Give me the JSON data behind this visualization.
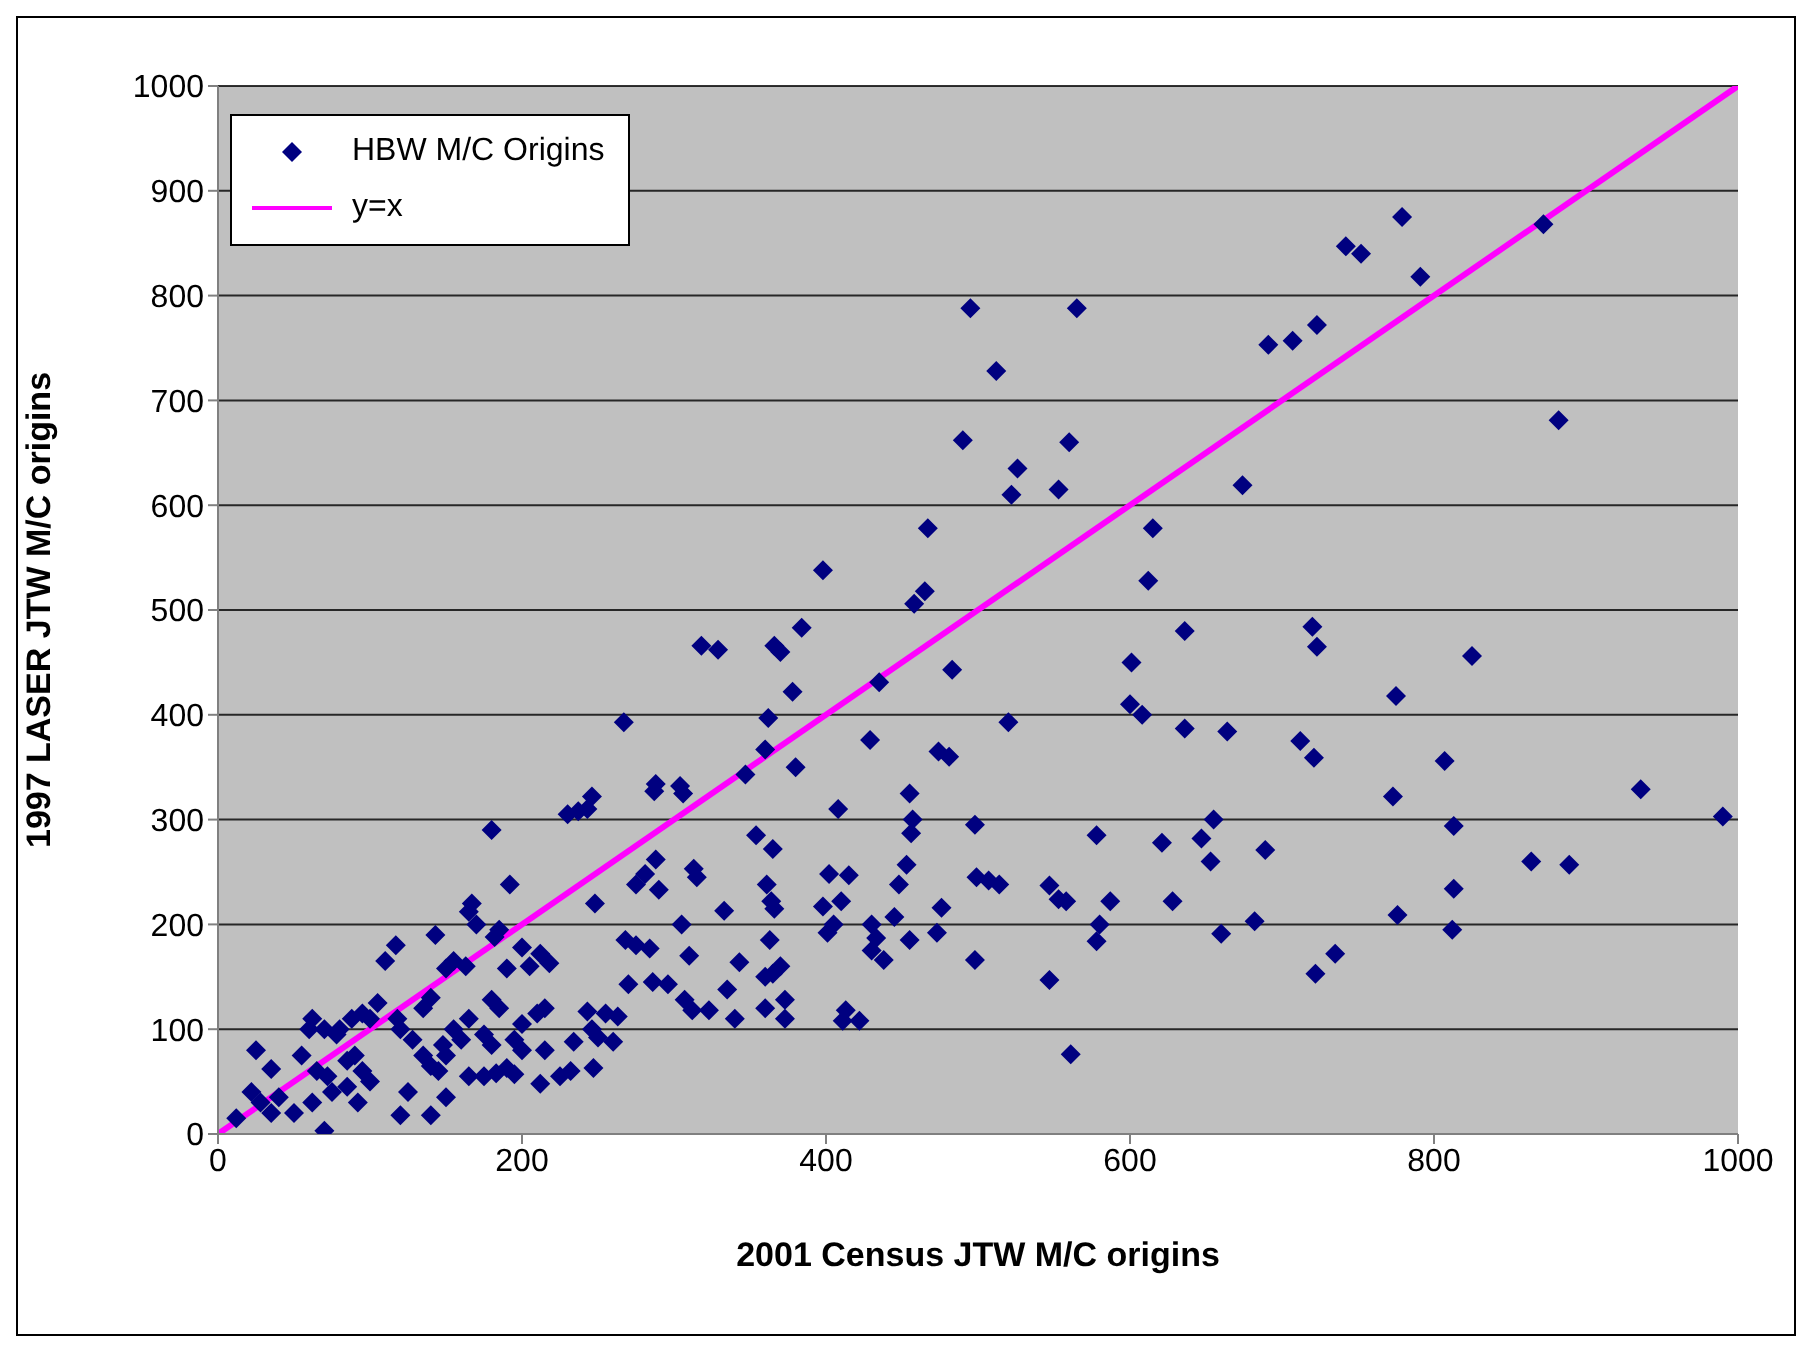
{
  "chart_data": {
    "type": "scatter",
    "xlabel": "2001 Census JTW M/C origins",
    "ylabel": "1997 LASER JTW M/C origins",
    "xlim": [
      0,
      1000
    ],
    "xticks": [
      0,
      200,
      400,
      600,
      800,
      1000
    ],
    "ylim": [
      0,
      1000
    ],
    "yticks": [
      0,
      100,
      200,
      300,
      400,
      500,
      600,
      700,
      800,
      900,
      1000
    ],
    "grid": "y",
    "legend": "top left",
    "marker": "diamond",
    "series": [
      {
        "name": "HBW M/C Origins",
        "color": "#000080",
        "x": [
          495,
          565,
          512,
          490,
          560,
          526,
          522,
          553,
          467,
          465,
          458,
          483,
          398,
          691,
          707,
          723,
          742,
          752,
          779,
          791,
          872,
          882,
          674,
          615,
          612,
          636,
          720,
          723,
          825,
          601,
          775,
          600,
          608,
          636,
          664,
          520,
          712,
          721,
          807,
          936,
          990,
          773,
          813,
          655,
          647,
          621,
          689,
          653,
          864,
          889,
          813,
          587,
          628,
          776,
          682,
          812,
          660,
          722,
          735,
          578,
          547,
          553,
          558,
          580,
          578,
          547,
          561,
          498,
          499,
          507,
          514,
          498,
          476,
          473,
          474,
          481,
          455,
          457,
          456,
          453,
          448,
          445,
          455,
          435,
          429,
          430,
          433,
          430,
          438,
          408,
          402,
          415,
          410,
          398,
          401,
          405,
          411,
          413,
          422,
          362,
          360,
          366,
          370,
          384,
          378,
          380,
          347,
          318,
          329,
          354,
          365,
          361,
          364,
          366,
          363,
          370,
          365,
          360,
          360,
          373,
          373,
          343,
          333,
          335,
          340,
          323,
          312,
          307,
          305,
          310,
          313,
          315,
          304,
          306,
          288,
          287,
          267,
          288,
          281,
          275,
          290,
          275,
          284,
          268,
          296,
          286,
          270,
          260,
          247,
          263,
          255,
          243,
          246,
          250,
          230,
          237,
          243,
          246,
          248,
          234,
          225,
          232,
          212,
          215,
          200,
          205,
          212,
          218,
          210,
          215,
          200,
          190,
          195,
          180,
          192,
          185,
          182,
          190,
          180,
          185,
          175,
          180,
          183,
          167,
          165,
          170,
          163,
          155,
          150,
          143,
          140,
          135,
          155,
          160,
          165,
          148,
          150,
          140,
          145,
          128,
          135,
          120,
          117,
          110,
          118,
          105,
          100,
          95,
          88,
          80,
          78,
          70,
          62,
          60,
          55,
          65,
          72,
          85,
          90,
          95,
          100,
          92,
          85,
          75,
          62,
          50,
          40,
          35,
          28,
          25,
          35,
          22,
          12,
          70,
          120,
          125,
          140,
          150,
          165,
          175,
          200,
          195
        ],
        "values": [
          788,
          788,
          728,
          662,
          660,
          635,
          610,
          615,
          578,
          518,
          506,
          443,
          538,
          753,
          757,
          772,
          847,
          840,
          875,
          818,
          868,
          681,
          619,
          578,
          528,
          480,
          484,
          465,
          456,
          450,
          418,
          410,
          400,
          387,
          384,
          393,
          375,
          359,
          356,
          329,
          303,
          322,
          294,
          300,
          282,
          278,
          271,
          260,
          260,
          257,
          234,
          222,
          222,
          209,
          203,
          195,
          191,
          153,
          172,
          285,
          237,
          224,
          222,
          200,
          184,
          147,
          76,
          295,
          245,
          242,
          238,
          166,
          216,
          192,
          365,
          360,
          325,
          300,
          287,
          257,
          238,
          207,
          185,
          431,
          376,
          200,
          187,
          175,
          166,
          310,
          248,
          247,
          222,
          217,
          192,
          200,
          108,
          118,
          108,
          397,
          367,
          466,
          460,
          483,
          422,
          350,
          343,
          466,
          462,
          285,
          272,
          238,
          222,
          215,
          185,
          160,
          153,
          150,
          120,
          128,
          110,
          164,
          213,
          138,
          110,
          118,
          118,
          128,
          200,
          170,
          253,
          245,
          332,
          325,
          334,
          327,
          393,
          262,
          248,
          238,
          233,
          180,
          177,
          185,
          143,
          145,
          143,
          88,
          63,
          112,
          115,
          117,
          100,
          92,
          305,
          308,
          310,
          322,
          220,
          88,
          55,
          60,
          48,
          120,
          178,
          160,
          172,
          163,
          115,
          80,
          80,
          63,
          57,
          290,
          238,
          195,
          188,
          158,
          128,
          120,
          95,
          85,
          58,
          220,
          212,
          200,
          160,
          165,
          158,
          190,
          130,
          120,
          100,
          90,
          110,
          85,
          75,
          65,
          60,
          90,
          75,
          100,
          180,
          165,
          110,
          125,
          110,
          115,
          110,
          100,
          95,
          100,
          110,
          100,
          75,
          60,
          55,
          70,
          75,
          60,
          50,
          30,
          45,
          40,
          30,
          20,
          35,
          20,
          30,
          80,
          62,
          40,
          15,
          3,
          18,
          40,
          18,
          35,
          55,
          55,
          105,
          90
        ]
      },
      {
        "name": "y=x",
        "type": "line",
        "color": "#ff00ff",
        "marker": "none",
        "line_style": "solid",
        "x": [
          0,
          1000
        ],
        "values": [
          0,
          1000
        ]
      }
    ]
  }
}
